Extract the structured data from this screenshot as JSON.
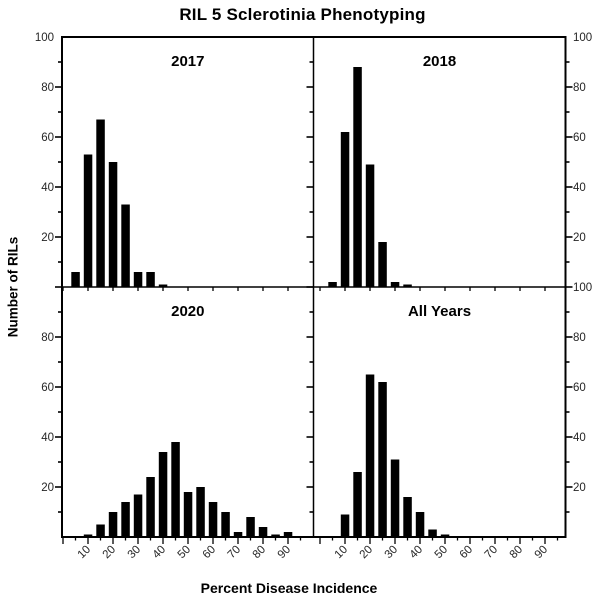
{
  "chart_data": {
    "type": "bar",
    "title": "RIL 5 Sclerotinia Phenotyping",
    "xlabel": "Percent Disease Incidence",
    "ylabel": "Number of RILs",
    "bin_width": 5,
    "xlim": [
      0,
      95
    ],
    "ylim": [
      0,
      100
    ],
    "x_major_ticks": [
      10,
      20,
      30,
      40,
      50,
      60,
      70,
      80,
      90
    ],
    "x_minor_step": 5,
    "y_major_ticks": [
      20,
      40,
      60,
      80,
      100
    ],
    "y_minor_step": 10,
    "bar_color": "#000000",
    "axis_color": "#000000",
    "tick_label_color": "#262626",
    "grid": false,
    "legend": "none",
    "panels": [
      {
        "label": "2017",
        "position": "top-left",
        "x": [
          5,
          10,
          15,
          20,
          25,
          30,
          35,
          40
        ],
        "values": [
          6,
          53,
          67,
          50,
          33,
          6,
          6,
          1
        ]
      },
      {
        "label": "2018",
        "position": "top-right",
        "x": [
          5,
          10,
          15,
          20,
          25,
          30,
          35
        ],
        "values": [
          2,
          62,
          88,
          49,
          18,
          2,
          1
        ]
      },
      {
        "label": "2020",
        "position": "bottom-left",
        "x": [
          10,
          15,
          20,
          25,
          30,
          35,
          40,
          45,
          50,
          55,
          60,
          65,
          70,
          75,
          80,
          85,
          90
        ],
        "values": [
          1,
          5,
          10,
          14,
          17,
          24,
          34,
          38,
          18,
          20,
          14,
          10,
          2,
          8,
          4,
          1,
          2
        ]
      },
      {
        "label": "All Years",
        "position": "bottom-right",
        "x": [
          10,
          15,
          20,
          25,
          30,
          35,
          40,
          45,
          50
        ],
        "values": [
          9,
          26,
          65,
          62,
          31,
          16,
          10,
          3,
          1
        ]
      }
    ]
  }
}
